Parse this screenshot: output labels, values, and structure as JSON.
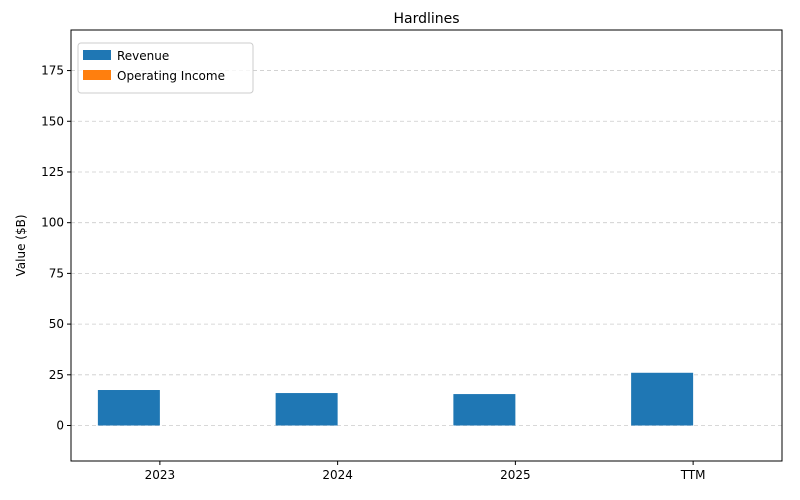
{
  "chart_data": {
    "type": "bar",
    "title": "Hardlines",
    "xlabel": "",
    "ylabel": "Value ($B)",
    "categories": [
      "2023",
      "2024",
      "2025",
      "TTM"
    ],
    "series": [
      {
        "name": "Revenue",
        "values": [
          17.5,
          16.0,
          15.5,
          26.0
        ],
        "color": "#1f77b4"
      },
      {
        "name": "Operating Income",
        "values": [
          0,
          0,
          0,
          0
        ],
        "color": "#ff7f0e"
      }
    ],
    "ylim": [
      -17.5,
      195
    ],
    "yticks": [
      0,
      25,
      50,
      75,
      100,
      125,
      150,
      175
    ],
    "ytick_labels": [
      "0",
      "25",
      "50",
      "75",
      "100",
      "125",
      "150",
      "175"
    ],
    "grid": "y-dashed",
    "legend_position": "upper-left"
  }
}
